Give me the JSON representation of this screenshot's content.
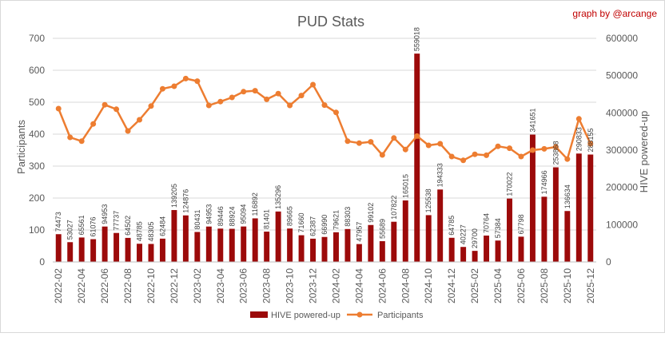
{
  "chart_data": {
    "type": "bar+line",
    "title": "PUD Stats",
    "credit": "graph by @arcange",
    "ylabel_left": "Participants",
    "ylabel_right": "HIVE powered-up",
    "ylim_left": [
      0,
      700
    ],
    "ylim_right": [
      0,
      600000
    ],
    "left_ticks": [
      0,
      100,
      200,
      300,
      400,
      500,
      600,
      700
    ],
    "right_ticks": [
      0,
      100000,
      200000,
      300000,
      400000,
      500000,
      600000
    ],
    "gridlines": true,
    "legend_position": "bottom",
    "categories": [
      "2022-02",
      "2022-03",
      "2022-04",
      "2022-05",
      "2022-06",
      "2022-07",
      "2022-08",
      "2022-09",
      "2022-10",
      "2022-11",
      "2022-12",
      "2023-01",
      "2023-02",
      "2023-03",
      "2023-04",
      "2023-05",
      "2023-06",
      "2023-07",
      "2023-08",
      "2023-09",
      "2023-10",
      "2023-11",
      "2023-12",
      "2024-01",
      "2024-02",
      "2024-03",
      "2024-04",
      "2024-05",
      "2024-06",
      "2024-07",
      "2024-08",
      "2024-09",
      "2024-10",
      "2024-11",
      "2024-12",
      "2025-01",
      "2025-02",
      "2025-03",
      "2025-04",
      "2025-05",
      "2025-06",
      "2025-07",
      "2025-08",
      "2025-09",
      "2025-10",
      "2025-11",
      "2025-12"
    ],
    "x_tick_labels": [
      "2022-02",
      "2022-04",
      "2022-06",
      "2022-08",
      "2022-10",
      "2022-12",
      "2023-02",
      "2023-04",
      "2023-06",
      "2023-08",
      "2023-10",
      "2023-12",
      "2024-02",
      "2024-04",
      "2024-06",
      "2024-08",
      "2024-10",
      "2024-12",
      "2025-02",
      "2025-04",
      "2025-06",
      "2025-08",
      "2025-10",
      "2025-12"
    ],
    "series": [
      {
        "name": "HIVE powered-up",
        "kind": "bar",
        "axis": "right",
        "color": "#9c0a0a",
        "values": [
          74473,
          53027,
          65561,
          61076,
          94953,
          77737,
          64502,
          48785,
          48305,
          62484,
          139205,
          124876,
          80431,
          94953,
          89446,
          88924,
          95094,
          116892,
          81401,
          135296,
          89665,
          71660,
          62387,
          66990,
          79621,
          88303,
          47957,
          99102,
          55689,
          107822,
          165015,
          559018,
          125538,
          194333,
          64785,
          40227,
          29700,
          70764,
          57384,
          170022,
          67798,
          341651,
          174966,
          253868,
          136634,
          290833,
          288155
        ],
        "data_labels": [
          "74473",
          "53027",
          "65561",
          "61076",
          "94953",
          "77737",
          "64502",
          "48785",
          "48305",
          "62484",
          "139205",
          "124876",
          "80431",
          "94953",
          "89446",
          "88924",
          "95094",
          "116892",
          "81401",
          "135296",
          "89665",
          "71660",
          "62387",
          "66990",
          "79621",
          "88303",
          "47957",
          "99102",
          "55689",
          "107822",
          "165015",
          "559018",
          "125538",
          "194333",
          "64785",
          "40227",
          "29700",
          "70764",
          "57384",
          "170022",
          "67798",
          "341651",
          "174966",
          "253868",
          "136634",
          "290833",
          "288155"
        ]
      },
      {
        "name": "Participants",
        "kind": "line",
        "axis": "left",
        "color": "#ed7d31",
        "values": [
          480,
          390,
          378,
          432,
          492,
          478,
          410,
          445,
          488,
          542,
          550,
          574,
          566,
          490,
          502,
          515,
          533,
          536,
          509,
          527,
          490,
          521,
          555,
          491,
          468,
          378,
          372,
          376,
          335,
          388,
          352,
          394,
          365,
          370,
          330,
          318,
          337,
          334,
          362,
          356,
          330,
          350,
          354,
          360,
          322,
          448,
          370
        ]
      }
    ]
  }
}
